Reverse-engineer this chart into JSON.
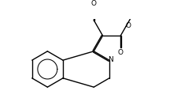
{
  "bg_color": "#ffffff",
  "line_color": "#000000",
  "lw": 1.0,
  "figsize": [
    2.25,
    1.29
  ],
  "dpi": 100,
  "N_label": "N",
  "O_labels": [
    "O",
    "O",
    "O"
  ],
  "dbo": 0.06
}
